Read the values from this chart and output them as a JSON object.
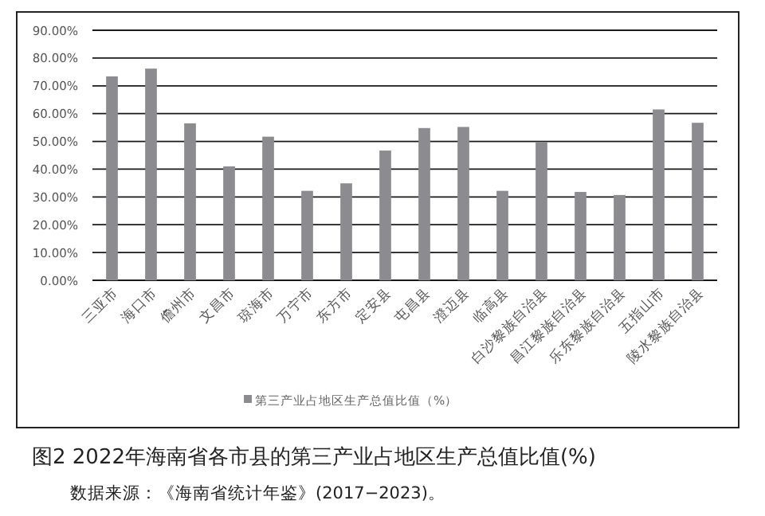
{
  "chart_data": {
    "type": "bar",
    "title": "图2  2022年海南省各市县的第三产业占地区生产总值比值(%)",
    "annotations": [
      "数据来源：《海南省统计年鉴》(2017−2023)。"
    ],
    "categories": [
      "三亚市",
      "海口市",
      "儋州市",
      "文昌市",
      "琼海市",
      "万宁市",
      "东方市",
      "定安县",
      "屯昌县",
      "澄迈县",
      "临高县",
      "白沙黎族自治县",
      "昌江黎族自治县",
      "乐东黎族自治县",
      "五指山市",
      "陵水黎族自治县"
    ],
    "series": [
      {
        "name": "第三产业占地区生产总值比值（%）",
        "color": "#8c8b90",
        "values": [
          73.4,
          76.2,
          56.5,
          41.0,
          51.7,
          32.2,
          34.9,
          46.7,
          54.8,
          55.2,
          32.2,
          49.8,
          31.8,
          30.7,
          61.5,
          56.7
        ]
      }
    ],
    "ylim": [
      0,
      90
    ],
    "yticks": [
      {
        "value": 0,
        "label": "0.00%"
      },
      {
        "value": 10,
        "label": "10.00%"
      },
      {
        "value": 20,
        "label": "20.00%"
      },
      {
        "value": 30,
        "label": "30.00%"
      },
      {
        "value": 40,
        "label": "40.00%"
      },
      {
        "value": 50,
        "label": "50.00%"
      },
      {
        "value": 60,
        "label": "60.00%"
      },
      {
        "value": 70,
        "label": "70.00%"
      },
      {
        "value": 80,
        "label": "80.00%"
      },
      {
        "value": 90,
        "label": "90.00%"
      }
    ],
    "grid": "y",
    "legend": "bottom"
  }
}
